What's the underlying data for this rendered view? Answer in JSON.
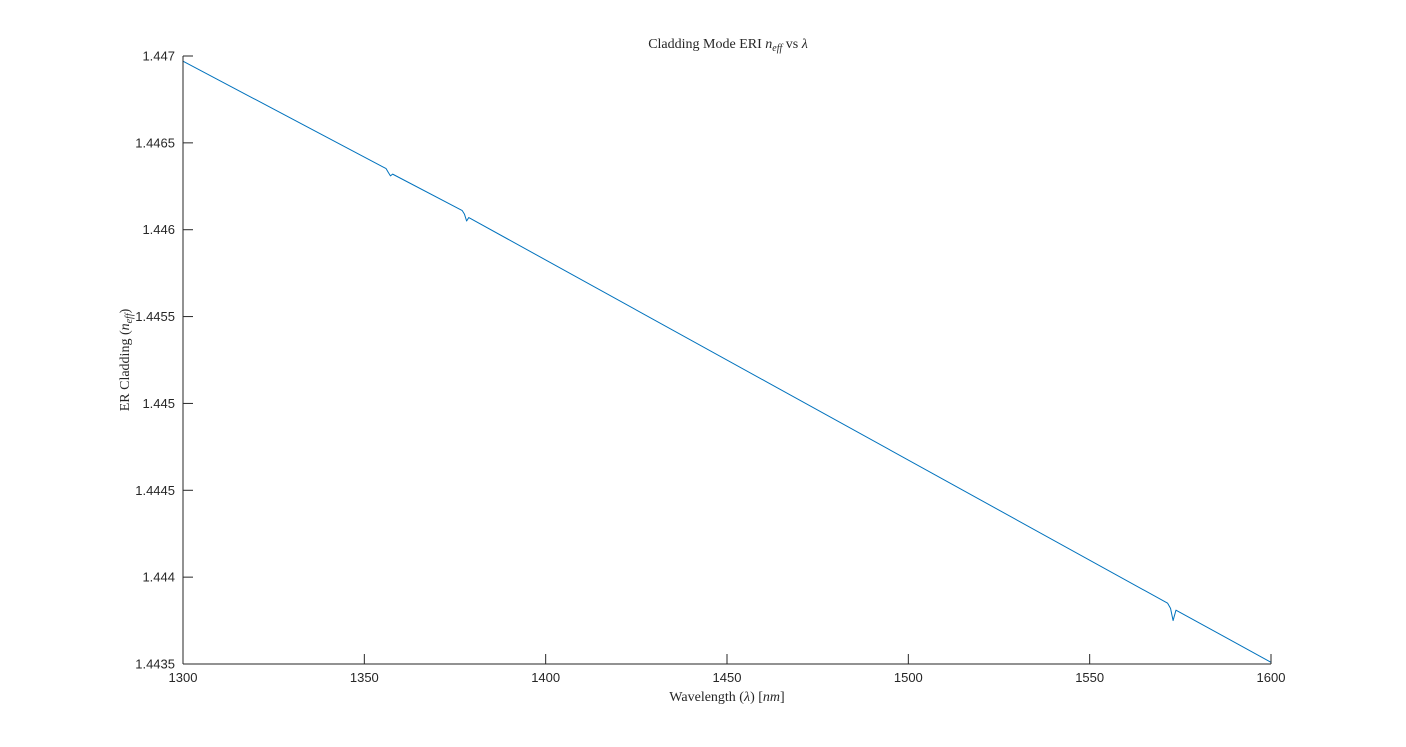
{
  "chart_data": {
    "type": "line",
    "title": {
      "prefix": "Cladding Mode ERI ",
      "var": "n",
      "sub": "eff",
      "suffix": " vs ",
      "lambda": "λ"
    },
    "xlabel": {
      "prefix": "Wavelength (",
      "lambda": "λ",
      "mid": ") [",
      "unit": "nm",
      "suffix": "]"
    },
    "ylabel": {
      "prefix": "ER Cladding (",
      "var": "n",
      "sub": "eff",
      "suffix": ")"
    },
    "xlim": [
      1300,
      1600
    ],
    "ylim": [
      1.4435,
      1.447
    ],
    "xticks": [
      "1300",
      "1350",
      "1400",
      "1450",
      "1500",
      "1550",
      "1600"
    ],
    "yticks": [
      "1.4435",
      "1.444",
      "1.4445",
      "1.445",
      "1.4455",
      "1.446",
      "1.4465",
      "1.447"
    ],
    "grid": false,
    "series": [
      {
        "color": "#0072bd",
        "x": [
          1300,
          1356,
          1356.6,
          1357.2,
          1357.8,
          1377,
          1377.6,
          1378.2,
          1378.8,
          1571.5,
          1572.3,
          1573,
          1573.8,
          1600
        ],
        "y": [
          1.44697,
          1.446352,
          1.44633,
          1.44631,
          1.44632,
          1.44611,
          1.44609,
          1.44605,
          1.44607,
          1.44385,
          1.44382,
          1.44375,
          1.44381,
          1.44351
        ]
      }
    ]
  }
}
